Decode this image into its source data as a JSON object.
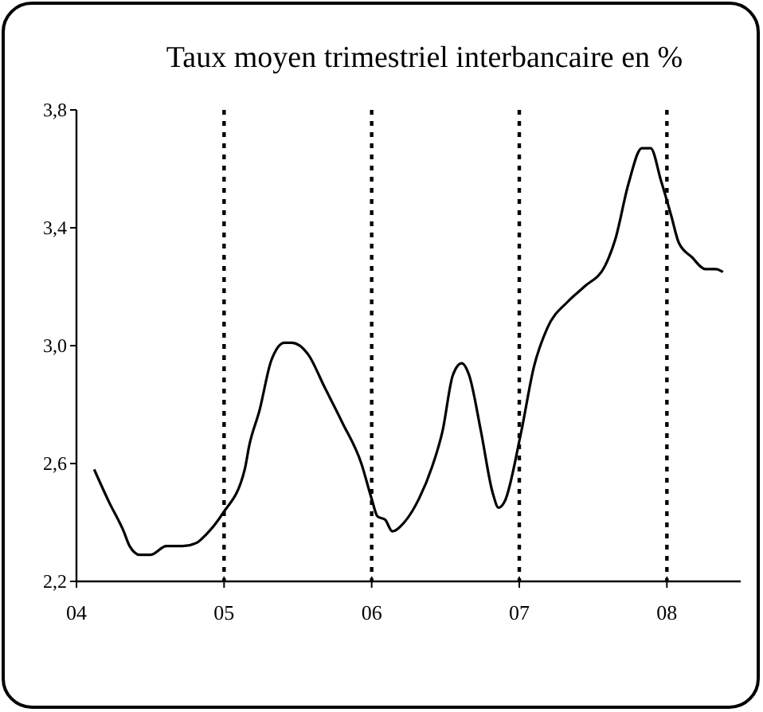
{
  "chart_data": {
    "type": "line",
    "title": "Taux moyen trimestriel interbancaire en %",
    "x": [
      2004.12,
      2004.22,
      2004.32,
      2004.36,
      2004.43,
      2004.5,
      2004.61,
      2004.72,
      2004.81,
      2004.88,
      2004.99,
      2005.14,
      2005.17,
      2005.24,
      2005.32,
      2005.41,
      2005.46,
      2005.57,
      2005.68,
      2005.8,
      2005.93,
      2006.0,
      2006.04,
      2006.09,
      2006.14,
      2006.22,
      2006.32,
      2006.41,
      2006.48,
      2006.55,
      2006.61,
      2006.66,
      2006.74,
      2006.82,
      2006.86,
      2006.9,
      2007.01,
      2007.1,
      2007.19,
      2007.33,
      2007.44,
      2007.58,
      2007.65,
      2007.74,
      2007.83,
      2007.89,
      2007.96,
      2008.03,
      2008.08,
      2008.17,
      2008.26,
      2008.33,
      2008.38
    ],
    "series": [
      {
        "color": "#000000",
        "values": [
          2.58,
          2.47,
          2.37,
          2.32,
          2.29,
          2.29,
          2.32,
          2.32,
          2.33,
          2.36,
          2.43,
          2.58,
          2.66,
          2.78,
          2.95,
          3.01,
          3.01,
          2.97,
          2.86,
          2.74,
          2.6,
          2.48,
          2.42,
          2.41,
          2.37,
          2.4,
          2.48,
          2.59,
          2.71,
          2.9,
          2.94,
          2.9,
          2.71,
          2.5,
          2.45,
          2.47,
          2.7,
          2.93,
          3.06,
          3.15,
          3.2,
          3.27,
          3.36,
          3.55,
          3.67,
          3.67,
          3.56,
          3.44,
          3.35,
          3.3,
          3.26,
          3.26,
          3.25
        ]
      }
    ],
    "xlim": [
      2004,
      2008.5
    ],
    "xticks": [
      {
        "value": 2004,
        "label": "04"
      },
      {
        "value": 2005,
        "label": "05"
      },
      {
        "value": 2006,
        "label": "06"
      },
      {
        "value": 2007,
        "label": "07"
      },
      {
        "value": 2008,
        "label": "08"
      }
    ],
    "ylim": [
      2.2,
      3.8
    ],
    "yticks": [
      {
        "value": 2.2,
        "label": "2,2"
      },
      {
        "value": 2.6,
        "label": "2,6"
      },
      {
        "value": 3.0,
        "label": "3,0"
      },
      {
        "value": 3.4,
        "label": "3,4"
      },
      {
        "value": 3.8,
        "label": "3,8"
      }
    ],
    "ref_lines": [
      {
        "axis": "x",
        "value": 2005,
        "line_style": "dotted"
      },
      {
        "axis": "x",
        "value": 2006,
        "line_style": "dotted"
      },
      {
        "axis": "x",
        "value": 2007,
        "line_style": "dotted"
      },
      {
        "axis": "x",
        "value": 2008,
        "line_style": "dotted"
      }
    ],
    "grid": false
  }
}
